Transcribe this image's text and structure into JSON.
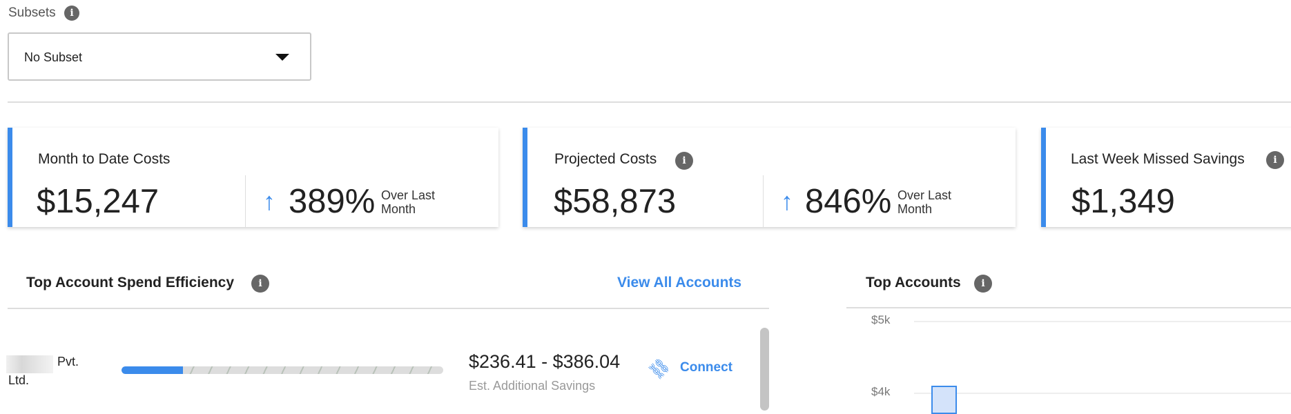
{
  "subsets": {
    "label": "Subsets",
    "info_icon": "info-icon",
    "selected": "No Subset"
  },
  "cards": [
    {
      "title": "Month to Date Costs",
      "value": "$15,247",
      "change": "389%",
      "change_direction": "up",
      "change_label_1": "Over Last",
      "change_label_2": "Month"
    },
    {
      "title": "Projected Costs",
      "value": "$58,873",
      "change": "846%",
      "change_direction": "up",
      "change_label_1": "Over Last",
      "change_label_2": "Month"
    },
    {
      "title": "Last Week Missed Savings",
      "value": "$1,349"
    }
  ],
  "efficiency": {
    "title": "Top Account Spend Efficiency",
    "view_all": "View All Accounts",
    "rows": [
      {
        "name_1": "Pvt.",
        "name_2": "Ltd.",
        "efficiency_fraction": 0.19,
        "savings": "$236.41 - $386.04",
        "savings_label": "Est. Additional Savings",
        "action": "Connect"
      }
    ]
  },
  "top_accounts": {
    "title": "Top Accounts"
  },
  "colors": {
    "accent": "#3b8beb",
    "bar_fill": "#d4e3fa"
  },
  "chart_data": {
    "type": "bar",
    "y_ticks": [
      "$5k",
      "$4k"
    ],
    "y_tick_values": [
      5000,
      4000
    ],
    "values": [
      4100
    ],
    "grid": true
  }
}
